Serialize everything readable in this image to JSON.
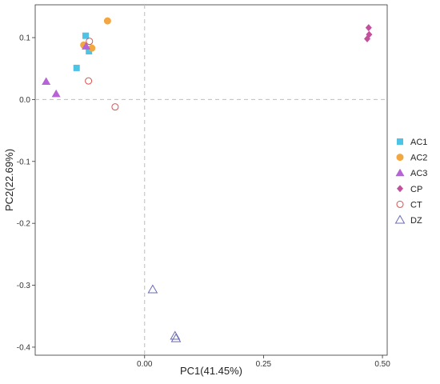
{
  "chart_data": {
    "type": "scatter",
    "xlabel": "PC1(41.45%)",
    "ylabel": "PC2(22.69%)",
    "xlim": [
      -0.23,
      0.51
    ],
    "ylim": [
      -0.413,
      0.153
    ],
    "xticks": [
      0.0,
      0.25,
      0.5
    ],
    "xtick_labels": [
      "0.00",
      "0.25",
      "0.50"
    ],
    "yticks": [
      -0.4,
      -0.3,
      -0.2,
      -0.1,
      0.0,
      0.1
    ],
    "ytick_labels": [
      "-0.4",
      "-0.3",
      "-0.2",
      "-0.1",
      "0.0",
      "0.1"
    ],
    "grid": false,
    "reference_lines": {
      "x": 0,
      "y": 0,
      "style": "dashed"
    },
    "legend_position": "right",
    "series": [
      {
        "name": "AC1",
        "marker": "square",
        "color": "#4EC3E6",
        "points": [
          [
            -0.124,
            0.103
          ],
          [
            -0.143,
            0.051
          ],
          [
            -0.117,
            0.078
          ]
        ]
      },
      {
        "name": "AC2",
        "marker": "circle",
        "color": "#F2A740",
        "points": [
          [
            -0.078,
            0.127
          ],
          [
            -0.128,
            0.088
          ],
          [
            -0.111,
            0.083
          ]
        ]
      },
      {
        "name": "AC3",
        "marker": "triangle",
        "color": "#B563D6",
        "points": [
          [
            -0.207,
            0.029
          ],
          [
            -0.186,
            0.009
          ],
          [
            -0.123,
            0.086
          ]
        ]
      },
      {
        "name": "CP",
        "marker": "diamond",
        "color": "#C2509D",
        "points": [
          [
            0.471,
            0.116
          ],
          [
            0.472,
            0.105
          ],
          [
            0.468,
            0.098
          ]
        ]
      },
      {
        "name": "CT",
        "marker": "open-circle",
        "color": "#D9534F",
        "points": [
          [
            -0.116,
            0.094
          ],
          [
            -0.118,
            0.03
          ],
          [
            -0.062,
            -0.012
          ]
        ]
      },
      {
        "name": "DZ",
        "marker": "open-triangle",
        "color": "#6B6BB5",
        "points": [
          [
            0.017,
            -0.307
          ],
          [
            0.064,
            -0.382
          ],
          [
            0.066,
            -0.386
          ]
        ]
      }
    ]
  }
}
